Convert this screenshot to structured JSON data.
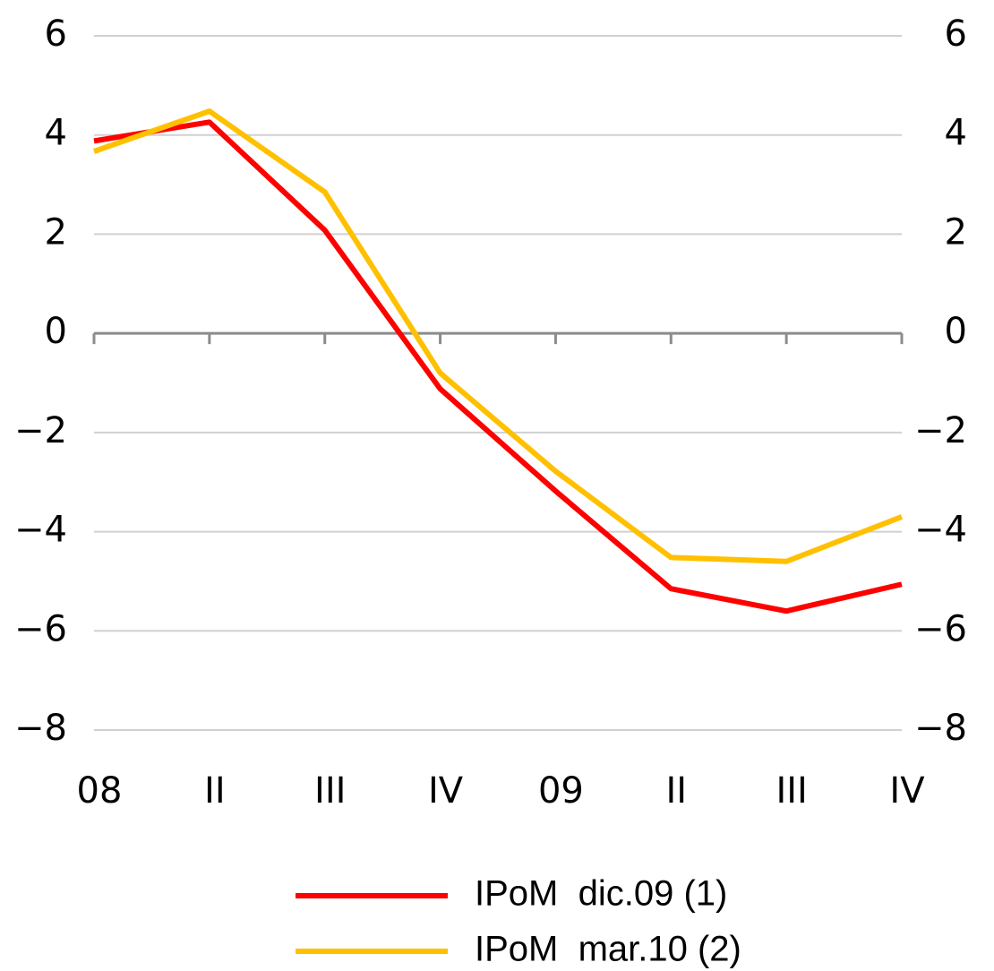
{
  "chart_data": {
    "type": "line",
    "categories": [
      "08",
      "II",
      "III",
      "IV",
      "09",
      "II",
      "III",
      "IV"
    ],
    "series": [
      {
        "name": "IPoM  dic.09 (1)",
        "color": "#ff0000",
        "values": [
          3.88,
          4.26,
          2.08,
          -1.12,
          -3.18,
          -5.15,
          -5.6,
          -5.06
        ]
      },
      {
        "name": "IPoM  mar.10 (2)",
        "color": "#ffc000",
        "values": [
          3.67,
          4.48,
          2.85,
          -0.8,
          -2.78,
          -4.52,
          -4.6,
          -3.7
        ]
      }
    ],
    "ylim": [
      -8,
      6
    ],
    "yticks": [
      {
        "value": -8,
        "label": "−8"
      },
      {
        "value": -6,
        "label": "−6"
      },
      {
        "value": -4,
        "label": "−4"
      },
      {
        "value": -2,
        "label": "−2"
      },
      0,
      2,
      4,
      6
    ],
    "y2lim": [
      -8,
      6
    ],
    "y2ticks": [
      {
        "value": -8,
        "label": "−8"
      },
      {
        "value": -6,
        "label": "−6"
      },
      {
        "value": -4,
        "label": "−4"
      },
      {
        "value": -2,
        "label": "−2"
      },
      0,
      2,
      4,
      6
    ],
    "grid": true,
    "legend": "bottom"
  }
}
